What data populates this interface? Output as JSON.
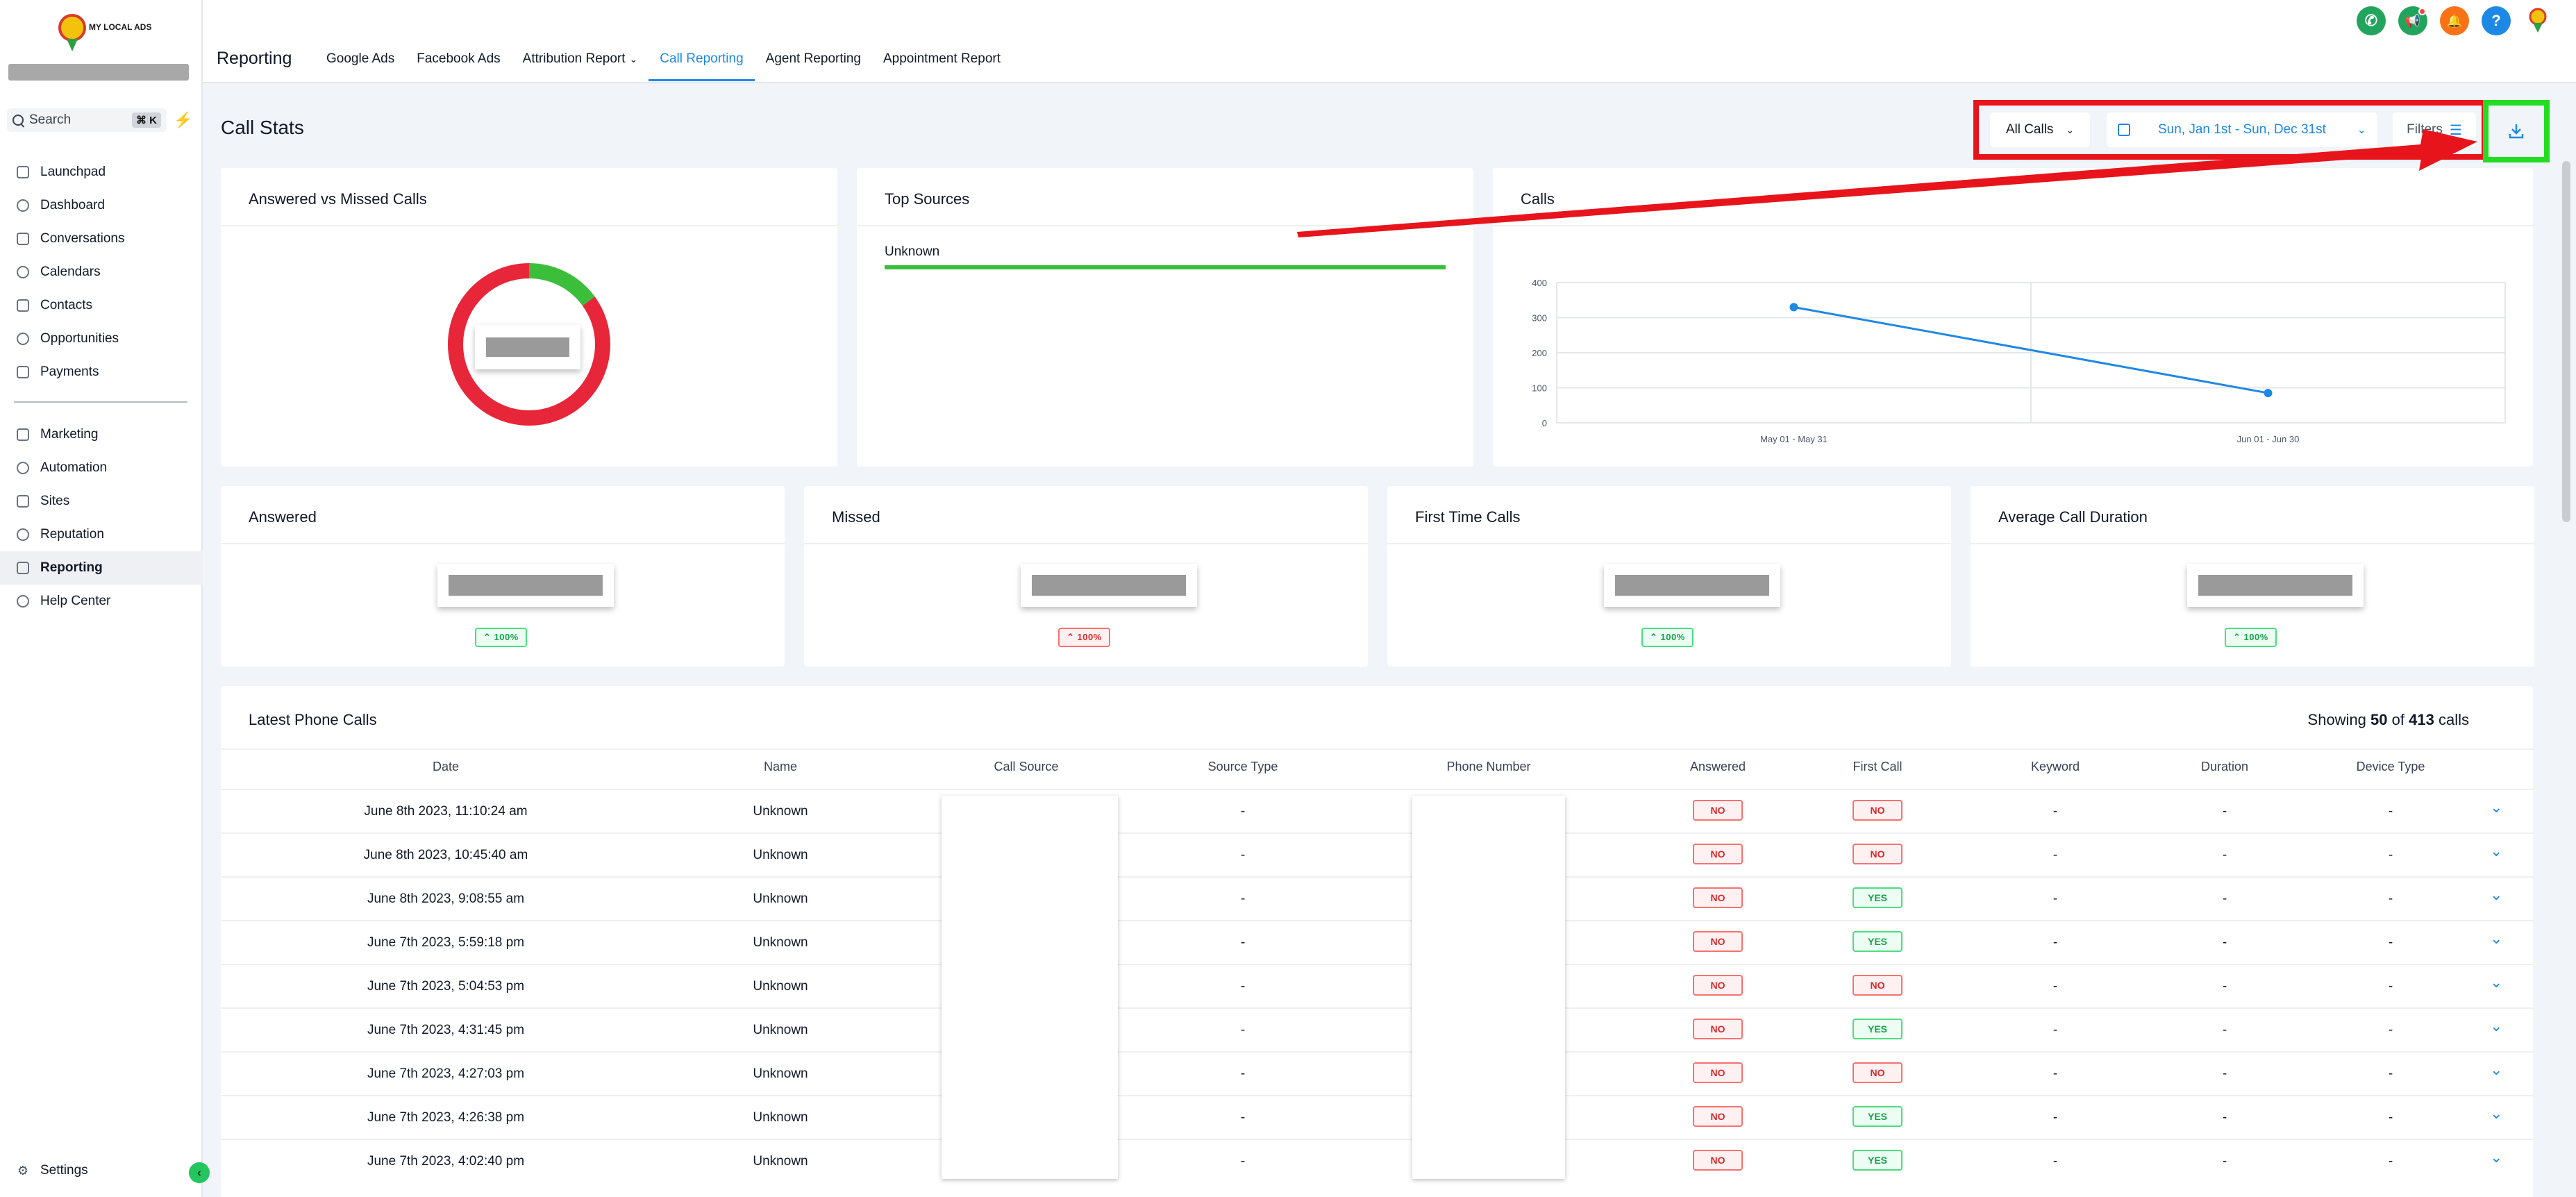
{
  "brand": {
    "logo_text": "MY LOCAL ADS"
  },
  "sidebar": {
    "search_label": "Search",
    "search_shortcut": "⌘ K",
    "items_top": [
      {
        "label": "Launchpad",
        "icon": "rocket-icon"
      },
      {
        "label": "Dashboard",
        "icon": "grid-icon"
      },
      {
        "label": "Conversations",
        "icon": "chat-icon"
      },
      {
        "label": "Calendars",
        "icon": "calendar-icon"
      },
      {
        "label": "Contacts",
        "icon": "contacts-icon"
      },
      {
        "label": "Opportunities",
        "icon": "pipeline-icon"
      },
      {
        "label": "Payments",
        "icon": "receipt-icon"
      }
    ],
    "items_bottom": [
      {
        "label": "Marketing",
        "icon": "send-icon"
      },
      {
        "label": "Automation",
        "icon": "automation-icon"
      },
      {
        "label": "Sites",
        "icon": "globe-icon"
      },
      {
        "label": "Reputation",
        "icon": "star-icon"
      },
      {
        "label": "Reporting",
        "icon": "trend-icon"
      },
      {
        "label": "Help Center",
        "icon": "people-icon"
      }
    ],
    "settings_label": "Settings"
  },
  "header": {
    "title": "Reporting",
    "tabs": [
      "Google Ads",
      "Facebook Ads",
      "Attribution Report",
      "Call Reporting",
      "Agent Reporting",
      "Appointment Report"
    ],
    "active_tab": "Call Reporting",
    "icons": [
      "phone-icon",
      "megaphone-icon",
      "bell-icon",
      "help-icon",
      "location-pin-icon"
    ],
    "icon_colors": [
      "#22a45d",
      "#22a45d",
      "#f97316",
      "#1e88e5",
      "transparent"
    ]
  },
  "main": {
    "title": "Call Stats",
    "call_filter": "All Calls",
    "date_range": "Sun, Jan 1st - Sun, Dec 31st",
    "filters_label": "Filters"
  },
  "cards": {
    "answered_vs_missed": {
      "title": "Answered vs Missed Calls",
      "answered_pct": 0.15,
      "missed_pct": 0.85,
      "answered_color": "#3bbf3b",
      "missed_color": "#e8263a"
    },
    "top_sources": {
      "title": "Top Sources",
      "sources": [
        {
          "name": "Unknown",
          "share": 1.0
        }
      ]
    },
    "calls_chart": {
      "title": "Calls"
    },
    "stats": [
      {
        "title": "Answered",
        "change": "100%",
        "trend": "up",
        "tone": "green"
      },
      {
        "title": "Missed",
        "change": "100%",
        "trend": "up",
        "tone": "red"
      },
      {
        "title": "First Time Calls",
        "change": "100%",
        "trend": "up",
        "tone": "green"
      },
      {
        "title": "Average Call Duration",
        "change": "100%",
        "trend": "up",
        "tone": "green"
      }
    ]
  },
  "chart_data": {
    "type": "line",
    "title": "Calls",
    "categories": [
      "May 01 - May 31",
      "Jun 01 - Jun 30"
    ],
    "series": [
      {
        "values": [
          330,
          85
        ]
      }
    ],
    "ylim": [
      0,
      400
    ],
    "yticks": [
      "400",
      "300",
      "200",
      "100",
      "0"
    ],
    "grid": true,
    "line_color": "#1e88e5"
  },
  "table": {
    "title": "Latest Phone Calls",
    "showing_prefix": "Showing",
    "showing_count": "50",
    "showing_mid": "of",
    "showing_total": "413",
    "showing_suffix": "calls",
    "columns": [
      "Date",
      "Name",
      "Call Source",
      "Source Type",
      "Phone Number",
      "Answered",
      "First Call",
      "Keyword",
      "Duration",
      "Device Type"
    ],
    "rows": [
      {
        "date": "June 8th 2023, 11:10:24 am",
        "name": "Unknown",
        "source_type": "-",
        "answered": "NO",
        "first_call": "NO",
        "keyword": "-",
        "duration": "-",
        "device": "-"
      },
      {
        "date": "June 8th 2023, 10:45:40 am",
        "name": "Unknown",
        "source_type": "-",
        "answered": "NO",
        "first_call": "NO",
        "keyword": "-",
        "duration": "-",
        "device": "-"
      },
      {
        "date": "June 8th 2023, 9:08:55 am",
        "name": "Unknown",
        "source_type": "-",
        "answered": "NO",
        "first_call": "YES",
        "keyword": "-",
        "duration": "-",
        "device": "-"
      },
      {
        "date": "June 7th 2023, 5:59:18 pm",
        "name": "Unknown",
        "source_type": "-",
        "answered": "NO",
        "first_call": "YES",
        "keyword": "-",
        "duration": "-",
        "device": "-"
      },
      {
        "date": "June 7th 2023, 5:04:53 pm",
        "name": "Unknown",
        "source_type": "-",
        "answered": "NO",
        "first_call": "NO",
        "keyword": "-",
        "duration": "-",
        "device": "-"
      },
      {
        "date": "June 7th 2023, 4:31:45 pm",
        "name": "Unknown",
        "source_type": "-",
        "answered": "NO",
        "first_call": "YES",
        "keyword": "-",
        "duration": "-",
        "device": "-"
      },
      {
        "date": "June 7th 2023, 4:27:03 pm",
        "name": "Unknown",
        "source_type": "-",
        "answered": "NO",
        "first_call": "NO",
        "keyword": "-",
        "duration": "-",
        "device": "-"
      },
      {
        "date": "June 7th 2023, 4:26:38 pm",
        "name": "Unknown",
        "source_type": "-",
        "answered": "NO",
        "first_call": "YES",
        "keyword": "-",
        "duration": "-",
        "device": "-"
      },
      {
        "date": "June 7th 2023, 4:02:40 pm",
        "name": "Unknown",
        "source_type": "-",
        "answered": "NO",
        "first_call": "YES",
        "keyword": "-",
        "duration": "-",
        "device": "-"
      }
    ]
  },
  "annotation_colors": {
    "frame_red": "#e8141c",
    "frame_green": "#22dd22",
    "arrow": "#e8141c"
  }
}
